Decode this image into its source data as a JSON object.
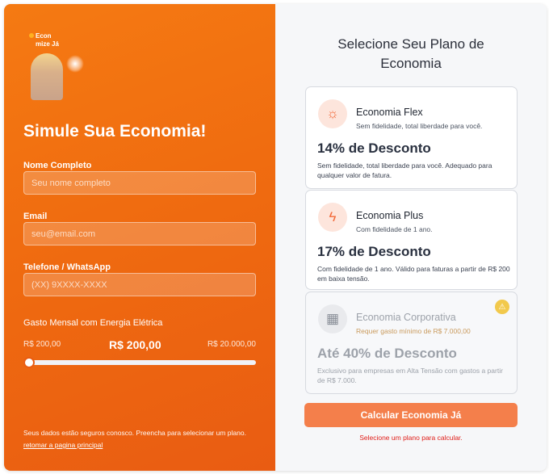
{
  "logo": {
    "line1": "Econ",
    "line2": "mize Já"
  },
  "left": {
    "title": "Simule Sua Economia!",
    "name_label": "Nome Completo",
    "name_placeholder": "Seu nome completo",
    "name_value": "",
    "email_label": "Email",
    "email_placeholder": "seu@email.com",
    "email_value": "",
    "phone_label": "Telefone / WhatsApp",
    "phone_placeholder": "(XX) 9XXXX-XXXX",
    "phone_value": "",
    "spend_label": "Gasto Mensal com Energia Elétrica",
    "spend_min": "R$ 200,00",
    "spend_value": "R$ 200,00",
    "spend_max": "R$ 20.000,00",
    "slider_fraction": 0,
    "footer": "Seus dados estão seguros conosco. Preencha para selecionar um plano.",
    "back_link": "retomar a pagina principal"
  },
  "right": {
    "title": "Selecione Seu Plano de Economia",
    "plans": [
      {
        "icon": "sun-icon",
        "name": "Economia Flex",
        "subtitle": "Sem fidelidade, total liberdade para você.",
        "discount": "14% de Desconto",
        "description": "Sem fidelidade, total liberdade para você. Adequado para qualquer valor de fatura."
      },
      {
        "icon": "lightning-icon",
        "name": "Economia Plus",
        "subtitle": "Com fidelidade de 1 ano.",
        "discount": "17% de Desconto",
        "description": "Com fidelidade de 1 ano. Válido para faturas a partir de R$ 200 em baixa tensão."
      },
      {
        "icon": "building-icon",
        "name": "Economia Corporativa",
        "subtitle": "Requer gasto mínimo de R$ 7.000,00",
        "discount": "Até 40% de Desconto",
        "description": "Exclusivo para empresas em Alta Tensão com gastos a partir de R$ 7.000.",
        "disabled": true
      }
    ],
    "button": "Calcular Economia Já",
    "error": "Selecione um plano para calcular."
  },
  "colors": {
    "accent": "#f26a10",
    "button": "#f47f4b",
    "error": "#e0201b",
    "warning": "#f2c94c"
  }
}
